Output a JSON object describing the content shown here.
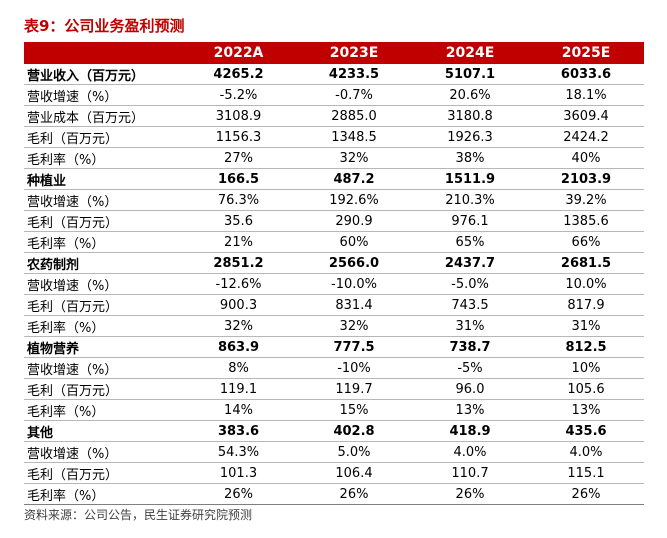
{
  "title": "表9：公司业务盈利预测",
  "table": {
    "header": [
      "",
      "2022A",
      "2023E",
      "2024E",
      "2025E"
    ],
    "rows": [
      {
        "bold": true,
        "label": "营业收入（百万元）",
        "values": [
          "4265.2",
          "4233.5",
          "5107.1",
          "6033.6"
        ]
      },
      {
        "bold": false,
        "label": "营收增速（%）",
        "values": [
          "-5.2%",
          "-0.7%",
          "20.6%",
          "18.1%"
        ]
      },
      {
        "bold": false,
        "label": "营业成本（百万元）",
        "values": [
          "3108.9",
          "2885.0",
          "3180.8",
          "3609.4"
        ]
      },
      {
        "bold": false,
        "label": "毛利（百万元）",
        "values": [
          "1156.3",
          "1348.5",
          "1926.3",
          "2424.2"
        ]
      },
      {
        "bold": false,
        "label": "毛利率（%）",
        "values": [
          "27%",
          "32%",
          "38%",
          "40%"
        ]
      },
      {
        "bold": true,
        "label": "种植业",
        "values": [
          "166.5",
          "487.2",
          "1511.9",
          "2103.9"
        ]
      },
      {
        "bold": false,
        "label": "营收增速（%）",
        "values": [
          "76.3%",
          "192.6%",
          "210.3%",
          "39.2%"
        ]
      },
      {
        "bold": false,
        "label": "毛利（百万元）",
        "values": [
          "35.6",
          "290.9",
          "976.1",
          "1385.6"
        ]
      },
      {
        "bold": false,
        "label": "毛利率（%）",
        "values": [
          "21%",
          "60%",
          "65%",
          "66%"
        ]
      },
      {
        "bold": true,
        "label": "农药制剂",
        "values": [
          "2851.2",
          "2566.0",
          "2437.7",
          "2681.5"
        ]
      },
      {
        "bold": false,
        "label": "营收增速（%）",
        "values": [
          "-12.6%",
          "-10.0%",
          "-5.0%",
          "10.0%"
        ]
      },
      {
        "bold": false,
        "label": "毛利（百万元）",
        "values": [
          "900.3",
          "831.4",
          "743.5",
          "817.9"
        ]
      },
      {
        "bold": false,
        "label": "毛利率（%）",
        "values": [
          "32%",
          "32%",
          "31%",
          "31%"
        ]
      },
      {
        "bold": true,
        "label": "植物营养",
        "values": [
          "863.9",
          "777.5",
          "738.7",
          "812.5"
        ]
      },
      {
        "bold": false,
        "label": "营收增速（%）",
        "values": [
          "8%",
          "-10%",
          "-5%",
          "10%"
        ]
      },
      {
        "bold": false,
        "label": "毛利（百万元）",
        "values": [
          "119.1",
          "119.7",
          "96.0",
          "105.6"
        ]
      },
      {
        "bold": false,
        "label": "毛利率（%）",
        "values": [
          "14%",
          "15%",
          "13%",
          "13%"
        ]
      },
      {
        "bold": true,
        "label": "其他",
        "values": [
          "383.6",
          "402.8",
          "418.9",
          "435.6"
        ]
      },
      {
        "bold": false,
        "label": "营收增速（%）",
        "values": [
          "54.3%",
          "5.0%",
          "4.0%",
          "4.0%"
        ]
      },
      {
        "bold": false,
        "label": "毛利（百万元）",
        "values": [
          "101.3",
          "106.4",
          "110.7",
          "115.1"
        ]
      },
      {
        "bold": false,
        "label": "毛利率（%）",
        "values": [
          "26%",
          "26%",
          "26%",
          "26%"
        ]
      }
    ]
  },
  "source": "资料来源：公司公告，民生证券研究院预测",
  "colors": {
    "accent": "#c00000",
    "header_text": "#ffffff",
    "row_divider": "#b7b7b7"
  }
}
